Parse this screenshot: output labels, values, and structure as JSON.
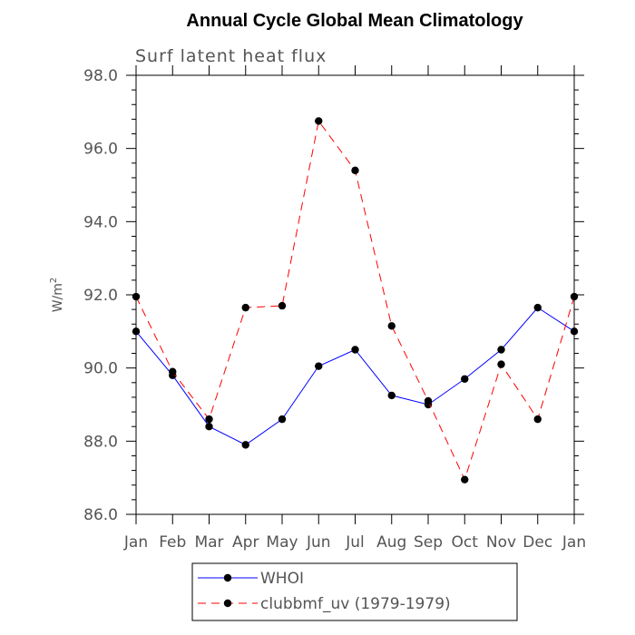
{
  "chart_data": {
    "type": "line",
    "title": "Annual Cycle Global Mean Climatology",
    "subtitle": "Surf latent heat flux",
    "ylabel_base": "W/m",
    "ylabel_sup": "2",
    "xlabel": "",
    "categories": [
      "Jan",
      "Feb",
      "Mar",
      "Apr",
      "May",
      "Jun",
      "Jul",
      "Aug",
      "Sep",
      "Oct",
      "Nov",
      "Dec",
      "Jan"
    ],
    "ylim": [
      86.0,
      98.0
    ],
    "yticks": [
      "86.0",
      "88.0",
      "90.0",
      "92.0",
      "94.0",
      "96.0",
      "98.0"
    ],
    "series": [
      {
        "name": "WHOI",
        "color": "#0000ff",
        "dash": "solid",
        "values": [
          91.0,
          89.8,
          88.4,
          87.9,
          88.6,
          90.05,
          90.5,
          89.25,
          89.0,
          89.7,
          90.5,
          91.65,
          91.0
        ]
      },
      {
        "name": "clubbmf_uv (1979-1979)",
        "color": "#ff0000",
        "dash": "dashed",
        "values": [
          91.95,
          89.9,
          88.6,
          91.65,
          91.7,
          96.75,
          95.4,
          91.15,
          89.1,
          86.95,
          90.1,
          88.6,
          91.95
        ]
      }
    ],
    "legend_position": "bottom-center",
    "grid": false
  }
}
